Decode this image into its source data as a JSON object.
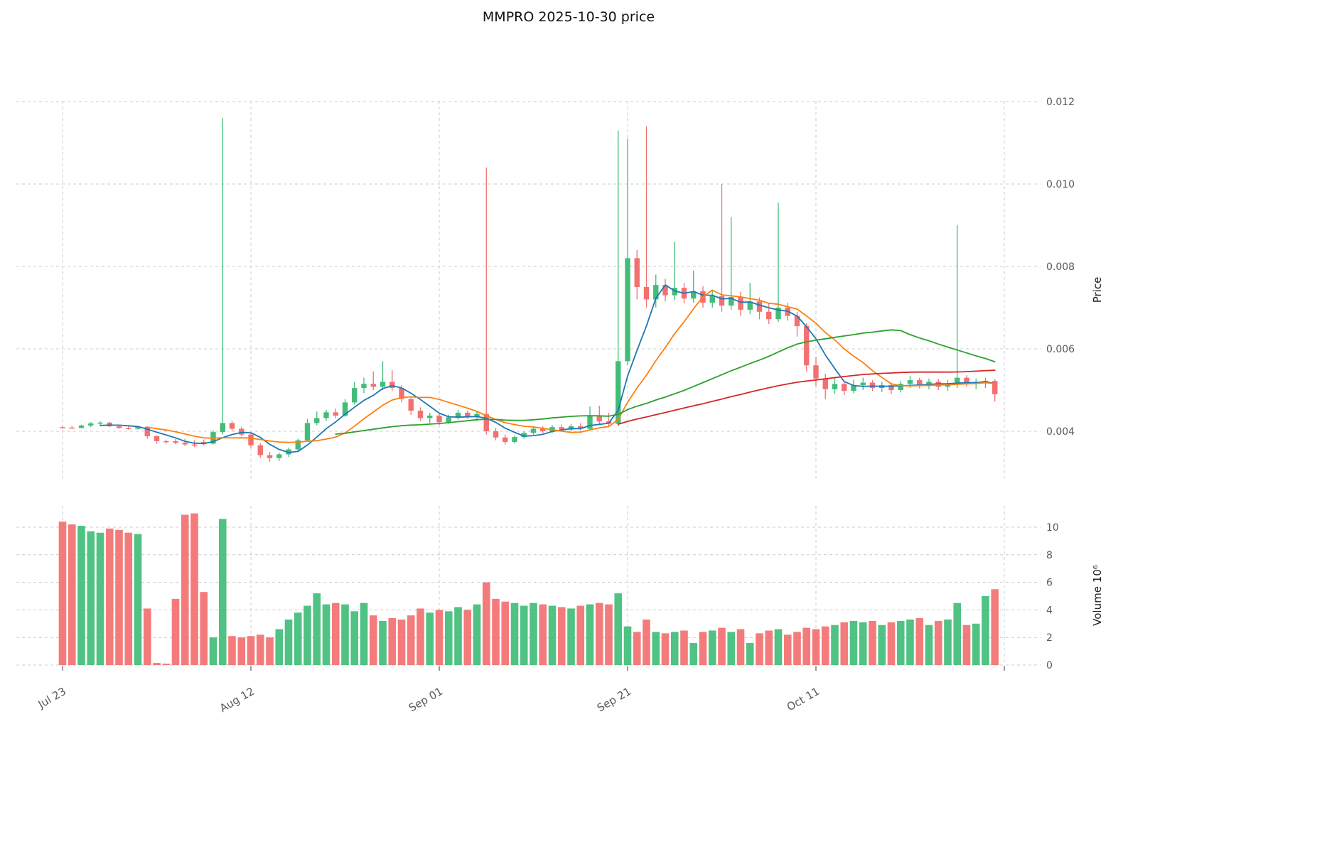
{
  "title": "MMPRO  2025-10-30  price",
  "axes": {
    "price_label": "Price",
    "volume_label": "Volume  10⁶",
    "price_ticks": [
      "0.012",
      "0.010",
      "0.008",
      "0.006",
      "0.004"
    ],
    "volume_ticks": [
      "10",
      "8",
      "6",
      "4",
      "2",
      "0"
    ],
    "x_ticks": [
      {
        "index": 0,
        "label": "Jul 23"
      },
      {
        "index": 20,
        "label": "Aug 12"
      },
      {
        "index": 40,
        "label": "Sep 01"
      },
      {
        "index": 60,
        "label": "Sep 21"
      },
      {
        "index": 80,
        "label": "Oct 11"
      },
      {
        "index": 100,
        "label": ""
      }
    ]
  },
  "colors": {
    "up": "#41bd78",
    "down": "#f37070",
    "ma": [
      "#1f77b4",
      "#ff7f0e",
      "#2ca02c",
      "#d62728"
    ],
    "grid": "#cccccc",
    "tick_text": "#595959",
    "title_text": "#111111"
  },
  "chart_data": {
    "type": "candlestick",
    "symbol": "MMPRO",
    "as_of_date": "2025-10-30",
    "start_date": "2025-07-23",
    "frequency": "daily",
    "grid": true,
    "legend": "none",
    "price_axis_range": [
      0.00285,
      0.01205
    ],
    "volume_axis_range_millions": [
      0,
      11.6
    ],
    "ma_periods": [
      5,
      10,
      30,
      60
    ],
    "ohlc": [
      [
        0.0041,
        0.00413,
        0.00407,
        0.00409
      ],
      [
        0.00409,
        0.00412,
        0.00406,
        0.00408
      ],
      [
        0.00408,
        0.00416,
        0.00407,
        0.00414
      ],
      [
        0.00414,
        0.00422,
        0.0041,
        0.00419
      ],
      [
        0.00419,
        0.00424,
        0.00414,
        0.00421
      ],
      [
        0.00421,
        0.00423,
        0.0041,
        0.00412
      ],
      [
        0.00412,
        0.00415,
        0.00406,
        0.00408
      ],
      [
        0.00408,
        0.00412,
        0.00404,
        0.00406
      ],
      [
        0.00406,
        0.00413,
        0.00404,
        0.00411
      ],
      [
        0.00411,
        0.00412,
        0.00382,
        0.00388
      ],
      [
        0.00388,
        0.0039,
        0.0037,
        0.00376
      ],
      [
        0.00376,
        0.0038,
        0.0037,
        0.00374
      ],
      [
        0.00376,
        0.00381,
        0.00368,
        0.00372
      ],
      [
        0.00372,
        0.00382,
        0.00364,
        0.00368
      ],
      [
        0.00368,
        0.00378,
        0.00362,
        0.00366
      ],
      [
        0.00374,
        0.0038,
        0.00366,
        0.0037
      ],
      [
        0.0037,
        0.00402,
        0.00368,
        0.00398
      ],
      [
        0.00398,
        0.0116,
        0.00392,
        0.0042
      ],
      [
        0.0042,
        0.00425,
        0.004,
        0.00406
      ],
      [
        0.00406,
        0.00411,
        0.00388,
        0.00392
      ],
      [
        0.00392,
        0.00396,
        0.0036,
        0.00366
      ],
      [
        0.00366,
        0.00371,
        0.00336,
        0.00342
      ],
      [
        0.00342,
        0.0035,
        0.00326,
        0.00335
      ],
      [
        0.00335,
        0.00348,
        0.00328,
        0.00344
      ],
      [
        0.00344,
        0.0036,
        0.00338,
        0.00356
      ],
      [
        0.00356,
        0.00382,
        0.00352,
        0.00378
      ],
      [
        0.00378,
        0.0043,
        0.00375,
        0.0042
      ],
      [
        0.0042,
        0.00448,
        0.00415,
        0.00432
      ],
      [
        0.00432,
        0.00452,
        0.00425,
        0.00446
      ],
      [
        0.00446,
        0.00455,
        0.00432,
        0.00438
      ],
      [
        0.00438,
        0.00478,
        0.00435,
        0.0047
      ],
      [
        0.0047,
        0.0052,
        0.00465,
        0.00505
      ],
      [
        0.00505,
        0.0053,
        0.00492,
        0.00515
      ],
      [
        0.00515,
        0.00545,
        0.005,
        0.00508
      ],
      [
        0.00508,
        0.0057,
        0.005,
        0.0052
      ],
      [
        0.0052,
        0.00548,
        0.00498,
        0.00505
      ],
      [
        0.00505,
        0.00512,
        0.0047,
        0.00478
      ],
      [
        0.00478,
        0.00485,
        0.0044,
        0.0045
      ],
      [
        0.0045,
        0.00458,
        0.00425,
        0.00432
      ],
      [
        0.00432,
        0.00445,
        0.0042,
        0.00438
      ],
      [
        0.00438,
        0.00442,
        0.00415,
        0.00422
      ],
      [
        0.00422,
        0.0044,
        0.00418,
        0.00434
      ],
      [
        0.00434,
        0.00452,
        0.00428,
        0.00445
      ],
      [
        0.00445,
        0.0045,
        0.0043,
        0.00436
      ],
      [
        0.00436,
        0.00448,
        0.00425,
        0.00442
      ],
      [
        0.00442,
        0.0104,
        0.00392,
        0.004
      ],
      [
        0.004,
        0.00408,
        0.00378,
        0.00385
      ],
      [
        0.00385,
        0.00392,
        0.00368,
        0.00374
      ],
      [
        0.00374,
        0.0039,
        0.0037,
        0.00386
      ],
      [
        0.00386,
        0.004,
        0.00382,
        0.00396
      ],
      [
        0.00396,
        0.00412,
        0.00392,
        0.00406
      ],
      [
        0.00406,
        0.00412,
        0.00395,
        0.004
      ],
      [
        0.004,
        0.00415,
        0.00396,
        0.0041
      ],
      [
        0.0041,
        0.00416,
        0.004,
        0.00404
      ],
      [
        0.00404,
        0.00418,
        0.004,
        0.00412
      ],
      [
        0.00412,
        0.0042,
        0.00402,
        0.00406
      ],
      [
        0.00406,
        0.0046,
        0.00404,
        0.00438
      ],
      [
        0.00438,
        0.00462,
        0.00418,
        0.00424
      ],
      [
        0.00424,
        0.00445,
        0.00412,
        0.00418
      ],
      [
        0.00418,
        0.0113,
        0.00412,
        0.0057
      ],
      [
        0.0057,
        0.0111,
        0.0056,
        0.0082
      ],
      [
        0.0082,
        0.0084,
        0.0072,
        0.0075
      ],
      [
        0.0075,
        0.0114,
        0.007,
        0.0072
      ],
      [
        0.0072,
        0.0078,
        0.007,
        0.00755
      ],
      [
        0.00755,
        0.0077,
        0.00715,
        0.0073
      ],
      [
        0.0073,
        0.0086,
        0.00718,
        0.00748
      ],
      [
        0.00748,
        0.0076,
        0.0071,
        0.00722
      ],
      [
        0.00722,
        0.0079,
        0.00712,
        0.0074
      ],
      [
        0.0074,
        0.00752,
        0.007,
        0.00712
      ],
      [
        0.00712,
        0.00742,
        0.007,
        0.00728
      ],
      [
        0.00728,
        0.01,
        0.0069,
        0.00705
      ],
      [
        0.00705,
        0.0092,
        0.00695,
        0.00726
      ],
      [
        0.00726,
        0.00738,
        0.0068,
        0.00695
      ],
      [
        0.00695,
        0.0076,
        0.00685,
        0.00715
      ],
      [
        0.00715,
        0.00725,
        0.00672,
        0.0069
      ],
      [
        0.0069,
        0.0071,
        0.0066,
        0.00672
      ],
      [
        0.00672,
        0.00955,
        0.00665,
        0.007
      ],
      [
        0.007,
        0.00712,
        0.00668,
        0.0068
      ],
      [
        0.0068,
        0.0069,
        0.0063,
        0.00655
      ],
      [
        0.00655,
        0.00662,
        0.00545,
        0.0056
      ],
      [
        0.0056,
        0.0058,
        0.0051,
        0.00528
      ],
      [
        0.00528,
        0.0054,
        0.00478,
        0.00502
      ],
      [
        0.00502,
        0.0053,
        0.0049,
        0.00515
      ],
      [
        0.00515,
        0.00522,
        0.00488,
        0.00498
      ],
      [
        0.00498,
        0.00525,
        0.00492,
        0.00512
      ],
      [
        0.00512,
        0.0053,
        0.005,
        0.00518
      ],
      [
        0.00518,
        0.00524,
        0.00498,
        0.00505
      ],
      [
        0.00505,
        0.0052,
        0.00495,
        0.00512
      ],
      [
        0.00512,
        0.00518,
        0.0049,
        0.005
      ],
      [
        0.005,
        0.00522,
        0.00494,
        0.00515
      ],
      [
        0.00515,
        0.00535,
        0.00505,
        0.00524
      ],
      [
        0.00524,
        0.0053,
        0.00504,
        0.0051
      ],
      [
        0.0051,
        0.00528,
        0.00502,
        0.0052
      ],
      [
        0.0052,
        0.00526,
        0.005,
        0.00508
      ],
      [
        0.00508,
        0.00524,
        0.00498,
        0.00516
      ],
      [
        0.00516,
        0.009,
        0.00505,
        0.0053
      ],
      [
        0.0053,
        0.00536,
        0.00508,
        0.00515
      ],
      [
        0.00515,
        0.00528,
        0.00502,
        0.0052
      ],
      [
        0.0052,
        0.0053,
        0.00505,
        0.00522
      ],
      [
        0.00522,
        0.00526,
        0.00472,
        0.0049
      ]
    ],
    "volume_millions": [
      10.4,
      10.2,
      10.1,
      9.7,
      9.6,
      9.9,
      9.8,
      9.6,
      9.5,
      4.1,
      0.15,
      0.1,
      4.8,
      10.9,
      11.0,
      5.3,
      2.0,
      10.6,
      2.1,
      2.0,
      2.1,
      2.2,
      2.0,
      2.6,
      3.3,
      3.8,
      4.3,
      5.2,
      4.4,
      4.5,
      4.4,
      3.9,
      4.5,
      3.6,
      3.2,
      3.4,
      3.3,
      3.6,
      4.1,
      3.8,
      4.0,
      3.9,
      4.2,
      4.0,
      4.4,
      6.0,
      4.8,
      4.6,
      4.5,
      4.3,
      4.5,
      4.4,
      4.3,
      4.2,
      4.1,
      4.3,
      4.4,
      4.5,
      4.4,
      5.2,
      2.8,
      2.4,
      3.3,
      2.4,
      2.3,
      2.4,
      2.5,
      1.6,
      2.4,
      2.5,
      2.7,
      2.4,
      2.6,
      1.6,
      2.3,
      2.5,
      2.6,
      2.2,
      2.4,
      2.7,
      2.6,
      2.8,
      2.9,
      3.1,
      3.2,
      3.1,
      3.2,
      2.9,
      3.1,
      3.2,
      3.3,
      3.4,
      2.9,
      3.2,
      3.3,
      4.5,
      2.9,
      3.0,
      5.0,
      5.5
    ]
  }
}
